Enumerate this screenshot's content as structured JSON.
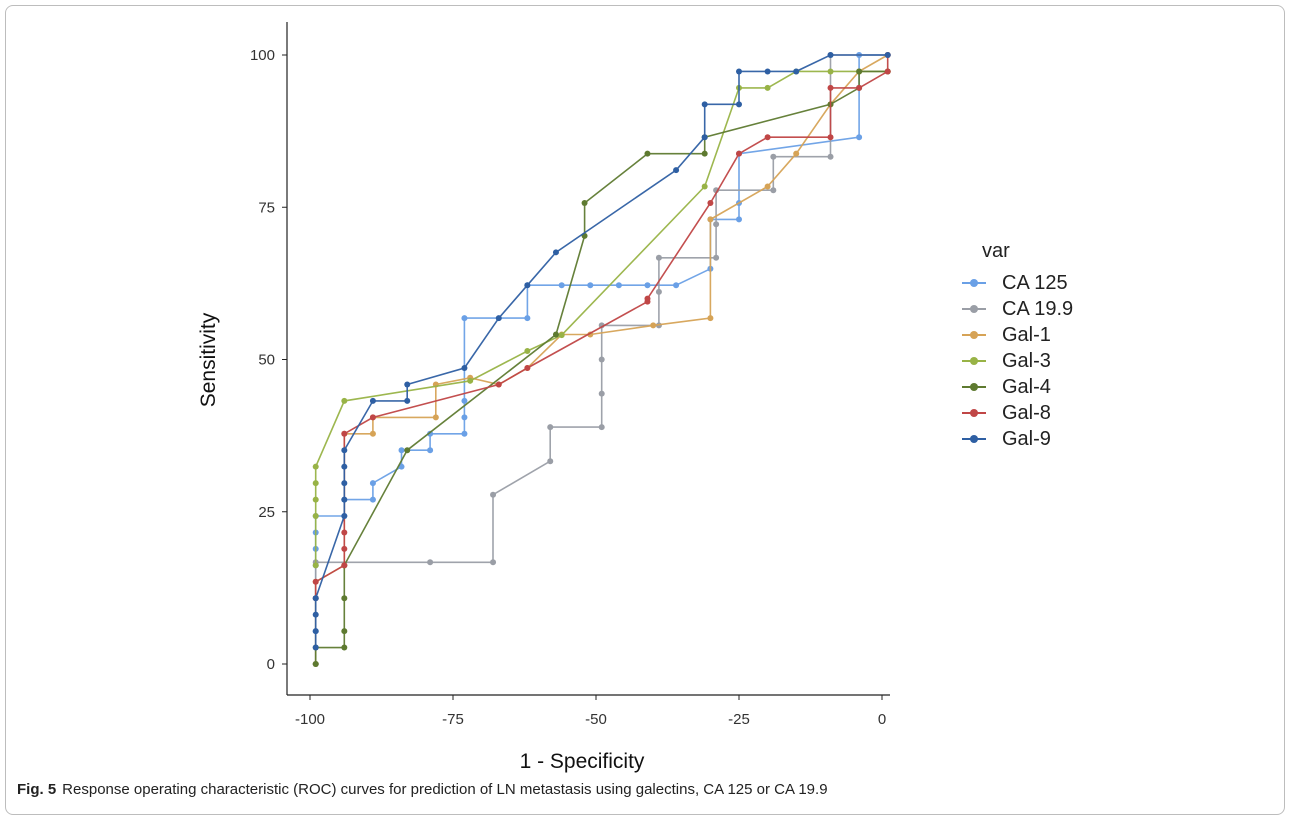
{
  "caption": {
    "label": "Fig. 5",
    "text": "Response operating characteristic (ROC) curves for prediction of LN metastasis using galectins, CA 125 or CA 19.9"
  },
  "chart_data": {
    "type": "line",
    "xlabel": "1 - Specificity",
    "ylabel": "Sensitivity",
    "xlim": [
      -100,
      0
    ],
    "ylim": [
      0,
      100
    ],
    "x_ticks": [
      -100,
      -75,
      -50,
      -25,
      0
    ],
    "x_tick_labels": [
      "-100",
      "-75",
      "-50",
      "-25",
      "0"
    ],
    "y_ticks": [
      0,
      25,
      50,
      75,
      100
    ],
    "y_tick_labels": [
      "0",
      "25",
      "50",
      "75",
      "100"
    ],
    "legend_title": "var",
    "legend_position": "right",
    "series": [
      {
        "name": "CA 125",
        "color": "#6aa0e6",
        "points": [
          [
            -99,
            0
          ],
          [
            -99,
            5.4
          ],
          [
            -99,
            10.8
          ],
          [
            -99,
            16.2
          ],
          [
            -99,
            18.9
          ],
          [
            -99,
            21.6
          ],
          [
            -99,
            24.3
          ],
          [
            -94,
            24.3
          ],
          [
            -94,
            27
          ],
          [
            -89,
            27
          ],
          [
            -89,
            29.7
          ],
          [
            -84,
            32.4
          ],
          [
            -84,
            35.1
          ],
          [
            -79,
            35.1
          ],
          [
            -79,
            37.8
          ],
          [
            -73,
            37.8
          ],
          [
            -73,
            40.5
          ],
          [
            -73,
            43.2
          ],
          [
            -73,
            56.8
          ],
          [
            -62,
            56.8
          ],
          [
            -62,
            62.2
          ],
          [
            -56,
            62.2
          ],
          [
            -51,
            62.2
          ],
          [
            -46,
            62.2
          ],
          [
            -41,
            62.2
          ],
          [
            -36,
            62.2
          ],
          [
            -30,
            64.9
          ],
          [
            -30,
            73
          ],
          [
            -25,
            73
          ],
          [
            -25,
            75.7
          ],
          [
            -25,
            83.8
          ],
          [
            -4,
            86.5
          ],
          [
            -4,
            94.6
          ],
          [
            -4,
            100
          ],
          [
            1,
            100
          ]
        ]
      },
      {
        "name": "CA 19.9",
        "color": "#9a9ea6",
        "points": [
          [
            -99,
            0
          ],
          [
            -99,
            16.7
          ],
          [
            -79,
            16.7
          ],
          [
            -68,
            16.7
          ],
          [
            -68,
            27.8
          ],
          [
            -58,
            33.3
          ],
          [
            -58,
            38.9
          ],
          [
            -49,
            38.9
          ],
          [
            -49,
            44.4
          ],
          [
            -49,
            50
          ],
          [
            -49,
            55.6
          ],
          [
            -39,
            55.6
          ],
          [
            -39,
            61.1
          ],
          [
            -39,
            66.7
          ],
          [
            -29,
            66.7
          ],
          [
            -29,
            72.2
          ],
          [
            -29,
            77.8
          ],
          [
            -19,
            77.8
          ],
          [
            -19,
            83.3
          ],
          [
            -9,
            83.3
          ],
          [
            -9,
            100
          ],
          [
            1,
            100
          ]
        ]
      },
      {
        "name": "Gal-1",
        "color": "#d6a356",
        "points": [
          [
            -99,
            0
          ],
          [
            -99,
            13.5
          ],
          [
            -94,
            16.2
          ],
          [
            -94,
            37.8
          ],
          [
            -89,
            37.8
          ],
          [
            -89,
            40.5
          ],
          [
            -78,
            40.5
          ],
          [
            -78,
            45.9
          ],
          [
            -72,
            47
          ],
          [
            -67,
            45.9
          ],
          [
            -62,
            48.6
          ],
          [
            -56,
            54.1
          ],
          [
            -51,
            54.1
          ],
          [
            -40,
            55.6
          ],
          [
            -30,
            56.8
          ],
          [
            -30,
            73
          ],
          [
            -20,
            78.4
          ],
          [
            -15,
            83.8
          ],
          [
            -9,
            91.9
          ],
          [
            -4,
            97.3
          ],
          [
            1,
            100
          ]
        ]
      },
      {
        "name": "Gal-3",
        "color": "#98b346",
        "points": [
          [
            -99,
            16.2
          ],
          [
            -99,
            24.3
          ],
          [
            -99,
            27
          ],
          [
            -99,
            29.7
          ],
          [
            -99,
            32.4
          ],
          [
            -94,
            43.2
          ],
          [
            -72,
            46.5
          ],
          [
            -62,
            51.4
          ],
          [
            -56,
            54
          ],
          [
            -31,
            78.4
          ],
          [
            -25,
            94.6
          ],
          [
            -20,
            94.6
          ],
          [
            -15,
            97.3
          ],
          [
            -9,
            97.3
          ],
          [
            -4,
            97.3
          ],
          [
            1,
            97.3
          ]
        ]
      },
      {
        "name": "Gal-4",
        "color": "#5e7a30",
        "points": [
          [
            -99,
            0
          ],
          [
            -99,
            2.7
          ],
          [
            -94,
            2.7
          ],
          [
            -94,
            5.4
          ],
          [
            -94,
            10.8
          ],
          [
            -94,
            16.2
          ],
          [
            -83,
            35.1
          ],
          [
            -57,
            54.1
          ],
          [
            -52,
            70.3
          ],
          [
            -52,
            75.7
          ],
          [
            -41,
            83.8
          ],
          [
            -31,
            83.8
          ],
          [
            -31,
            86.5
          ],
          [
            -9,
            91.9
          ],
          [
            -4,
            94.6
          ],
          [
            -4,
            97.3
          ],
          [
            1,
            97.3
          ]
        ]
      },
      {
        "name": "Gal-8",
        "color": "#c04646",
        "points": [
          [
            -99,
            10.8
          ],
          [
            -99,
            13.5
          ],
          [
            -94,
            16.2
          ],
          [
            -94,
            18.9
          ],
          [
            -94,
            21.6
          ],
          [
            -94,
            37.8
          ],
          [
            -89,
            40.5
          ],
          [
            -67,
            45.9
          ],
          [
            -62,
            48.6
          ],
          [
            -41,
            59.5
          ],
          [
            -41,
            60
          ],
          [
            -30,
            75.7
          ],
          [
            -25,
            83.8
          ],
          [
            -20,
            86.5
          ],
          [
            -9,
            86.5
          ],
          [
            -9,
            94.6
          ],
          [
            -4,
            94.6
          ],
          [
            1,
            97.3
          ],
          [
            1,
            100
          ]
        ]
      },
      {
        "name": "Gal-9",
        "color": "#2e5fa3",
        "points": [
          [
            -99,
            2.7
          ],
          [
            -99,
            5.4
          ],
          [
            -99,
            8.1
          ],
          [
            -99,
            10.8
          ],
          [
            -94,
            24.3
          ],
          [
            -94,
            27
          ],
          [
            -94,
            29.7
          ],
          [
            -94,
            32.4
          ],
          [
            -94,
            35.1
          ],
          [
            -89,
            43.2
          ],
          [
            -83,
            43.2
          ],
          [
            -83,
            45.9
          ],
          [
            -73,
            48.6
          ],
          [
            -67,
            56.8
          ],
          [
            -62,
            62.2
          ],
          [
            -57,
            67.6
          ],
          [
            -36,
            81.1
          ],
          [
            -31,
            86.5
          ],
          [
            -31,
            91.9
          ],
          [
            -25,
            91.9
          ],
          [
            -25,
            97.3
          ],
          [
            -20,
            97.3
          ],
          [
            -15,
            97.3
          ],
          [
            -9,
            100
          ],
          [
            1,
            100
          ]
        ]
      }
    ]
  }
}
